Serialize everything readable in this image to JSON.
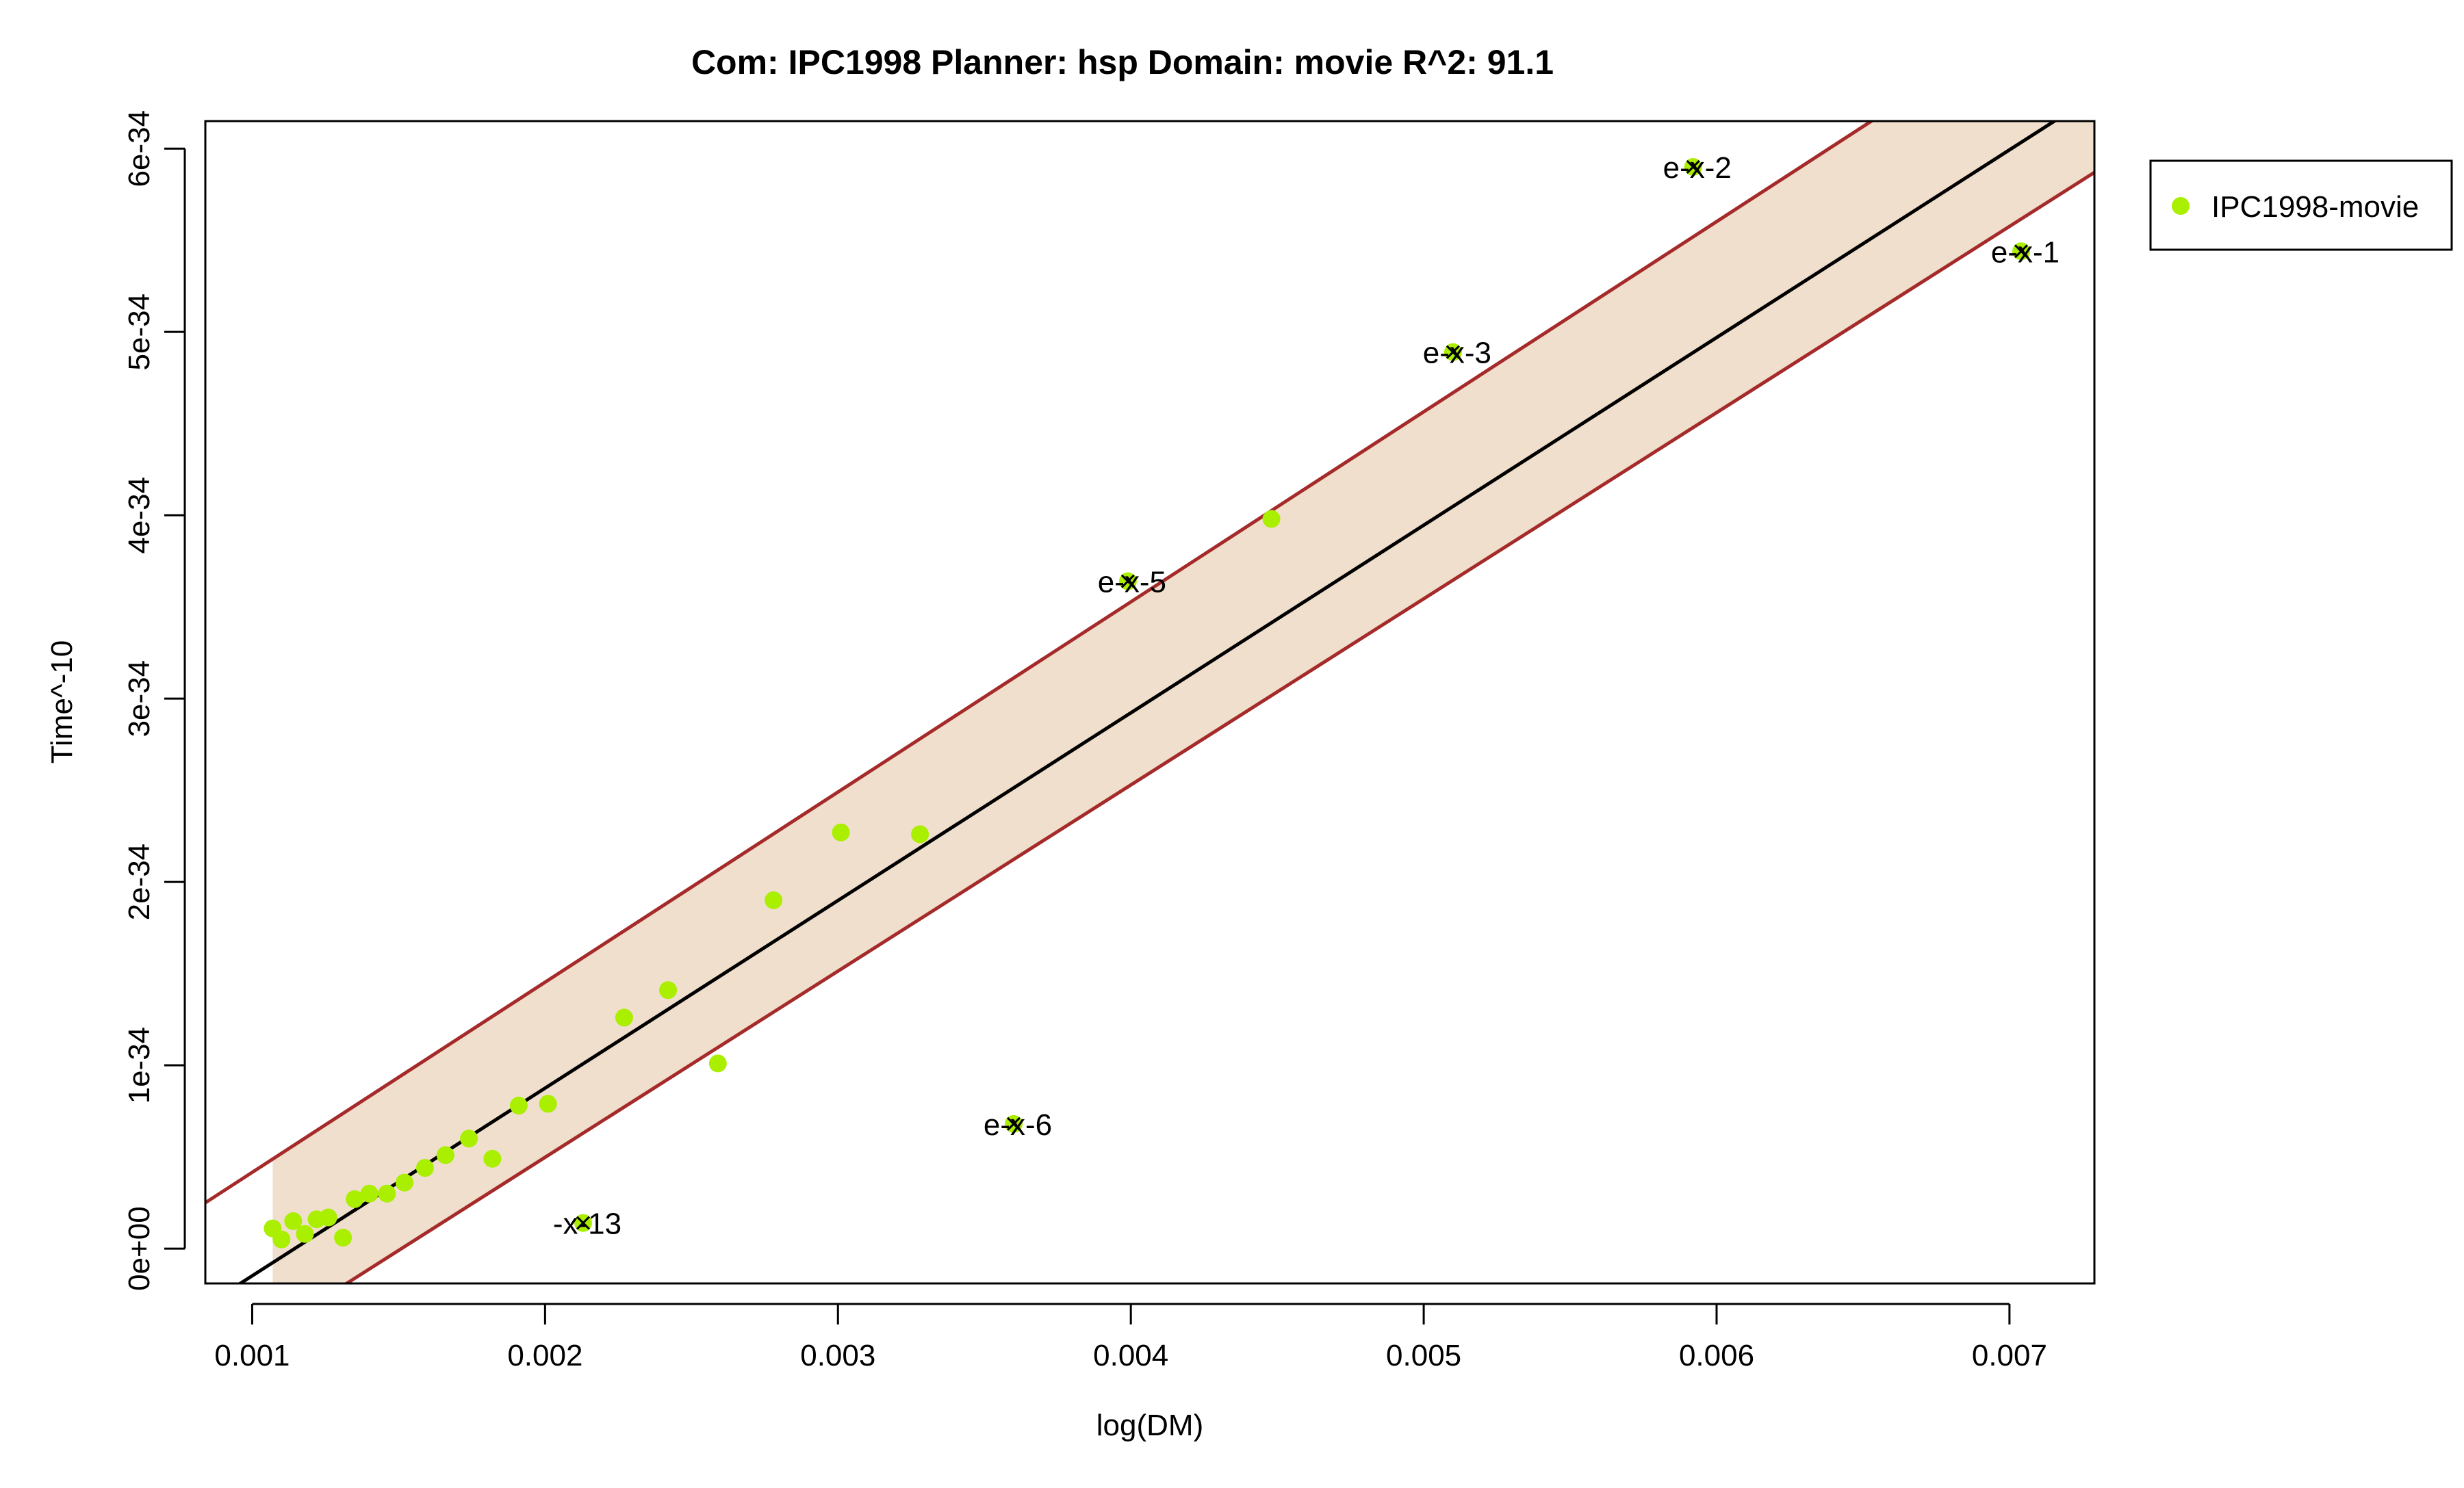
{
  "chart_data": {
    "type": "scatter",
    "title": "Com: IPC1998 Planner: hsp Domain: movie R^2: 91.1",
    "xlabel": "log(DM)",
    "ylabel": "Time^-10",
    "xlim": [
      0.00084,
      0.00729
    ],
    "ylim": [
      -1.9e-35,
      6.15e-34
    ],
    "x_ticks": [
      0.001,
      0.002,
      0.003,
      0.004,
      0.005,
      0.006,
      0.007
    ],
    "x_tick_labels": [
      "0.001",
      "0.002",
      "0.003",
      "0.004",
      "0.005",
      "0.006",
      "0.007"
    ],
    "y_ticks": [
      0,
      1e-34,
      2e-34,
      3e-34,
      4e-34,
      5e-34,
      6e-34
    ],
    "y_tick_labels": [
      "0e+00",
      "1e-34",
      "2e-34",
      "3e-34",
      "4e-34",
      "5e-34",
      "6e-34"
    ],
    "grid": false,
    "legend": {
      "placement": "right",
      "entries": [
        "IPC1998-movie"
      ]
    },
    "colors": {
      "points": "#aaee00",
      "fit_line": "#000000",
      "band_edges": "#a52a2a",
      "band_fill": "#f0dfcc",
      "outlier_marker": "#000000"
    },
    "fit": {
      "x0": 0.00093,
      "y0": -2.2e-35,
      "x1": 0.0073,
      "y1": 6.3e-34
    },
    "band": {
      "upper": {
        "x0": 0.00084,
        "y0": 2.5e-35,
        "x1": 0.0073,
        "y1": 6.95e-34
      },
      "lower": {
        "x0": 0.00084,
        "y0": -6.8e-35,
        "x1": 0.0073,
        "y1": 5.88e-34
      },
      "fill_xmin": 0.00107
    },
    "series": [
      {
        "name": "IPC1998-movie",
        "points": [
          {
            "x": 0.00107,
            "y": 1.1e-35
          },
          {
            "x": 0.0011,
            "y": 5e-36
          },
          {
            "x": 0.00114,
            "y": 1.5e-35
          },
          {
            "x": 0.00118,
            "y": 8e-36
          },
          {
            "x": 0.00122,
            "y": 1.6e-35
          },
          {
            "x": 0.00126,
            "y": 1.7e-35
          },
          {
            "x": 0.00131,
            "y": 6e-36
          },
          {
            "x": 0.00135,
            "y": 2.7e-35
          },
          {
            "x": 0.0014,
            "y": 3e-35
          },
          {
            "x": 0.00146,
            "y": 3e-35
          },
          {
            "x": 0.00152,
            "y": 3.6e-35
          },
          {
            "x": 0.00159,
            "y": 4.4e-35
          },
          {
            "x": 0.00166,
            "y": 5.1e-35
          },
          {
            "x": 0.00174,
            "y": 6e-35
          },
          {
            "x": 0.00182,
            "y": 4.9e-35
          },
          {
            "x": 0.00191,
            "y": 7.8e-35
          },
          {
            "x": 0.00201,
            "y": 7.9e-35
          },
          {
            "x": 0.00213,
            "y": 1.4e-35
          },
          {
            "x": 0.00227,
            "y": 1.26e-34
          },
          {
            "x": 0.00242,
            "y": 1.41e-34
          },
          {
            "x": 0.00259,
            "y": 1.01e-34
          },
          {
            "x": 0.00278,
            "y": 1.9e-34
          },
          {
            "x": 0.00301,
            "y": 2.27e-34
          },
          {
            "x": 0.00328,
            "y": 2.26e-34
          },
          {
            "x": 0.0036,
            "y": 6.8e-35
          },
          {
            "x": 0.00399,
            "y": 3.64e-34
          },
          {
            "x": 0.00448,
            "y": 3.98e-34
          },
          {
            "x": 0.0051,
            "y": 4.89e-34
          },
          {
            "x": 0.00592,
            "y": 5.9e-34
          },
          {
            "x": 0.00704,
            "y": 5.44e-34
          }
        ]
      }
    ],
    "annotations": [
      {
        "text": "e-x-2",
        "x": 0.00592,
        "y": 5.9e-34
      },
      {
        "text": "e-x-1",
        "x": 0.00704,
        "y": 5.44e-34
      },
      {
        "text": "e-x-3",
        "x": 0.0051,
        "y": 4.89e-34
      },
      {
        "text": "e-x-5",
        "x": 0.00399,
        "y": 3.64e-34
      },
      {
        "text": "e-x-6",
        "x": 0.0036,
        "y": 6.8e-35
      },
      {
        "text": "-x-13",
        "x": 0.00213,
        "y": 1.4e-35
      }
    ]
  }
}
